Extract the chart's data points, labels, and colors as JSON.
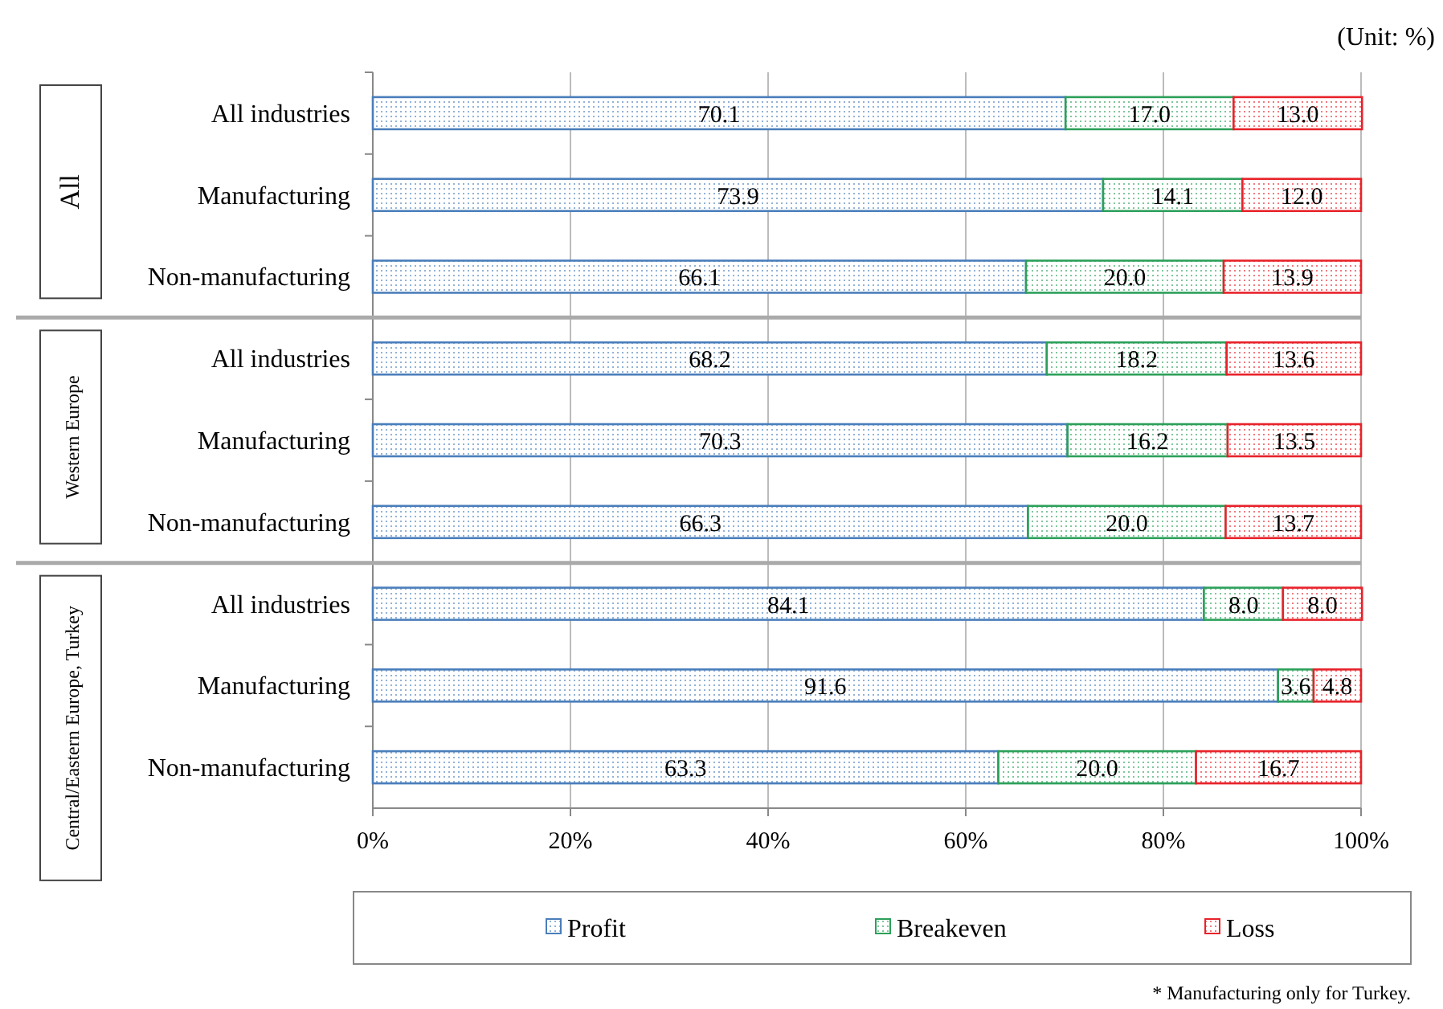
{
  "chart_data": {
    "type": "bar",
    "orientation": "horizontal",
    "stacked": true,
    "subtitle": "(Unit: %)",
    "categories": [
      "All industries",
      "Manufacturing",
      "Non-manufacturing",
      "All industries",
      "Manufacturing",
      "Non-manufacturing",
      "All industries",
      "Manufacturing",
      "Non-manufacturing"
    ],
    "series": [
      {
        "name": "Profit",
        "color": "#4a7ebb",
        "values": [
          70.1,
          73.9,
          66.1,
          68.2,
          70.3,
          66.3,
          84.1,
          91.6,
          63.3
        ],
        "value_labels": [
          "70.1",
          "73.9",
          "66.1",
          "68.2",
          "70.3",
          "66.3",
          "84.1",
          "91.6",
          "63.3"
        ]
      },
      {
        "name": "Breakeven",
        "color": "#2ca05a",
        "values": [
          17.0,
          14.1,
          20.0,
          18.2,
          16.2,
          20.0,
          8.0,
          3.6,
          20.0
        ],
        "value_labels": [
          "17.0",
          "14.1",
          "20.0",
          "18.2",
          "16.2",
          "20.0",
          "8.0",
          "3.6",
          "20.0"
        ]
      },
      {
        "name": "Loss",
        "color": "#e8222a",
        "values": [
          13.0,
          12.0,
          13.9,
          13.6,
          13.5,
          13.7,
          8.0,
          4.8,
          16.7
        ],
        "value_labels": [
          "13.0",
          "12.0",
          "13.9",
          "13.6",
          "13.5",
          "13.7",
          "8.0",
          "4.8",
          "16.7"
        ]
      }
    ],
    "annotations": [
      "All",
      "Western Europe",
      "Central/Eastern Europe, Turkey",
      "* Manufacturing only for Turkey."
    ],
    "xlim": [
      0,
      100
    ],
    "xticks": [
      {
        "value": 0,
        "label": "0%"
      },
      {
        "value": 20,
        "label": "20%"
      },
      {
        "value": 40,
        "label": "40%"
      },
      {
        "value": 60,
        "label": "60%"
      },
      {
        "value": 80,
        "label": "80%"
      },
      {
        "value": 100,
        "label": "100%"
      }
    ],
    "grid": "x",
    "legend": "bottom"
  }
}
